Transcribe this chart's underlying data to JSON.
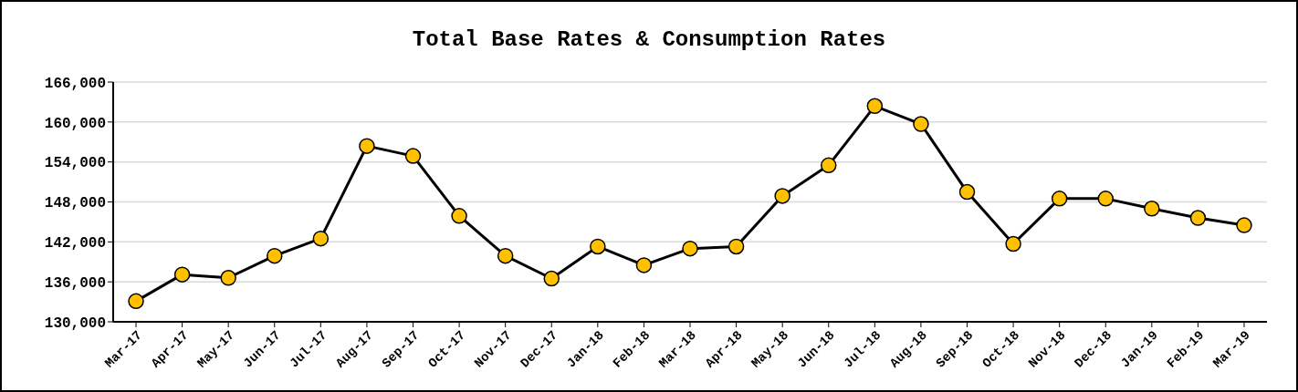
{
  "chart_data": {
    "type": "line",
    "title": "Total Base Rates & Consumption Rates",
    "categories": [
      "Mar-17",
      "Apr-17",
      "May-17",
      "Jun-17",
      "Jul-17",
      "Aug-17",
      "Sep-17",
      "Oct-17",
      "Nov-17",
      "Dec-17",
      "Jan-18",
      "Feb-18",
      "Mar-18",
      "Apr-18",
      "May-18",
      "Jun-18",
      "Jul-18",
      "Aug-18",
      "Sep-18",
      "Oct-18",
      "Nov-18",
      "Dec-18",
      "Jan-19",
      "Feb-19",
      "Mar-19"
    ],
    "series": [
      {
        "color": "#000000",
        "values": [
          133100,
          137100,
          136600,
          139900,
          142500,
          156400,
          154900,
          145900,
          139900,
          136500,
          141300,
          138500,
          141000,
          141300,
          148900,
          153500,
          162400,
          159700,
          149500,
          141700,
          148500,
          148500,
          147000,
          145600,
          144500
        ]
      }
    ],
    "ylim": [
      130000,
      166000
    ],
    "yticks": [
      {
        "value": 130000,
        "label": "130,000"
      },
      {
        "value": 136000,
        "label": "136,000"
      },
      {
        "value": 142000,
        "label": "142,000"
      },
      {
        "value": 148000,
        "label": "148,000"
      },
      {
        "value": 154000,
        "label": "154,000"
      },
      {
        "value": 160000,
        "label": "160,000"
      },
      {
        "value": 166000,
        "label": "166,000"
      }
    ],
    "grid": "y",
    "legend": false,
    "marker": "circle",
    "line_style": "solid"
  }
}
